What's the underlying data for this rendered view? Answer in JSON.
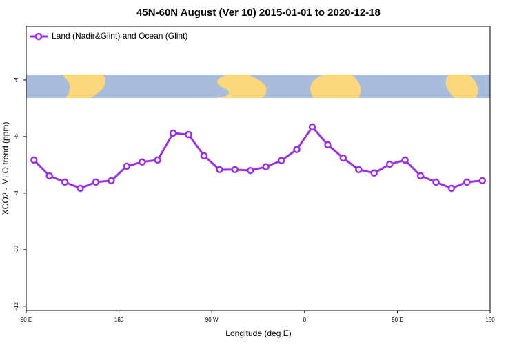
{
  "chart_data": {
    "type": "line",
    "title": "45N-60N August (Ver 10)   2015-01-01 to 2020-12-18",
    "x_label": "Longitude (deg E)",
    "y_label": "XCO2 - MLO trend (ppm)",
    "xlim": [
      90,
      540
    ],
    "xticks": [
      {
        "value": 90,
        "label": "90 E"
      },
      {
        "value": 180,
        "label": "180"
      },
      {
        "value": 270,
        "label": "90 W"
      },
      {
        "value": 360,
        "label": "0"
      },
      {
        "value": 450,
        "label": "90 E"
      },
      {
        "value": 540,
        "label": "180"
      }
    ],
    "ylim": [
      -12.15,
      -2.1
    ],
    "yticks": [
      -12,
      -10,
      -8,
      -6,
      -4
    ],
    "legend": "top-left",
    "series": [
      {
        "name": "Land (Nadir&Glint) and Ocean (Glint)",
        "color": "#9b30e8",
        "x": [
          97.5,
          112.5,
          127.5,
          142.5,
          157.5,
          172.5,
          187.5,
          202.5,
          217.5,
          232.5,
          247.5,
          262.5,
          277.5,
          292.5,
          307.5,
          322.5,
          337.5,
          352.5,
          367.5,
          382.5,
          397.5,
          412.5,
          427.5,
          442.5,
          457.5,
          472.5,
          487.5,
          502.5,
          517.5,
          532.5
        ],
        "values": [
          -6.83,
          -7.39,
          -7.61,
          -7.83,
          -7.61,
          -7.56,
          -7.05,
          -6.9,
          -6.83,
          -5.88,
          -5.93,
          -6.68,
          -7.17,
          -7.17,
          -7.2,
          -7.07,
          -6.85,
          -6.46,
          -5.66,
          -6.29,
          -6.76,
          -7.17,
          -7.29,
          -6.98,
          -6.83,
          -7.39,
          -7.61,
          -7.83,
          -7.61,
          -7.56
        ]
      }
    ]
  }
}
